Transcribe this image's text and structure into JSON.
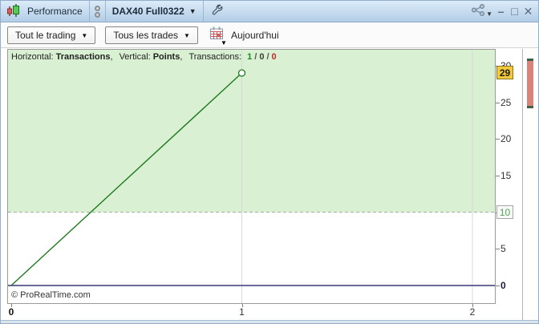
{
  "window": {
    "title": "Performance",
    "instrument": "DAX40 Full0322",
    "controls": {
      "minimize": "–",
      "maximize": "□",
      "close": "✕"
    }
  },
  "toolbar": {
    "trading_scope": "Tout le trading",
    "trade_filter": "Tous les trades",
    "date_label": "Aujourd'hui"
  },
  "chart": {
    "legend": {
      "h_label": "Horizontal:",
      "h_value": "Transactions",
      "comma": ",",
      "v_label": "Vertical:",
      "v_value": "Points",
      "t_label": "Transactions:",
      "slash": "/",
      "count_win": "1",
      "count_neutral": "0",
      "count_loss": "0"
    },
    "copyright": "© ProRealTime.com",
    "current_value": "29",
    "threshold_value": "10"
  },
  "chart_data": {
    "type": "line",
    "title": "Performance",
    "xlabel": "Transactions",
    "ylabel": "Points",
    "x": [
      0,
      1
    ],
    "y": [
      0,
      29
    ],
    "xticks": [
      0,
      1,
      2
    ],
    "yticks": [
      0,
      5,
      10,
      15,
      20,
      25,
      30
    ],
    "xlim": [
      0,
      2.1
    ],
    "ylim": [
      -2.5,
      32.3
    ],
    "grid": "vertical-only",
    "dashed_level": 10,
    "last_value": 29,
    "marker": "open-circle",
    "shaded_region": {
      "from": 10,
      "to": 32.3,
      "color": "#d9f0d2"
    },
    "line_color": "#1e7a1e",
    "zero_line_color": "#3a3a7a",
    "transactions_summary": {
      "wins": 1,
      "breakeven": 0,
      "losses": 0
    }
  },
  "colors": {
    "titlebar_top": "#dcebf8",
    "titlebar_bottom": "#b2cde6",
    "win_green": "#1f8a1f",
    "loss_red": "#c62828",
    "current_badge_bg": "#f2c83c",
    "threshold_text": "#5aa05a",
    "scroll_thumb": "#d9837b",
    "gridline": "#d8d8d8",
    "dashed_line": "#9aae9a"
  }
}
